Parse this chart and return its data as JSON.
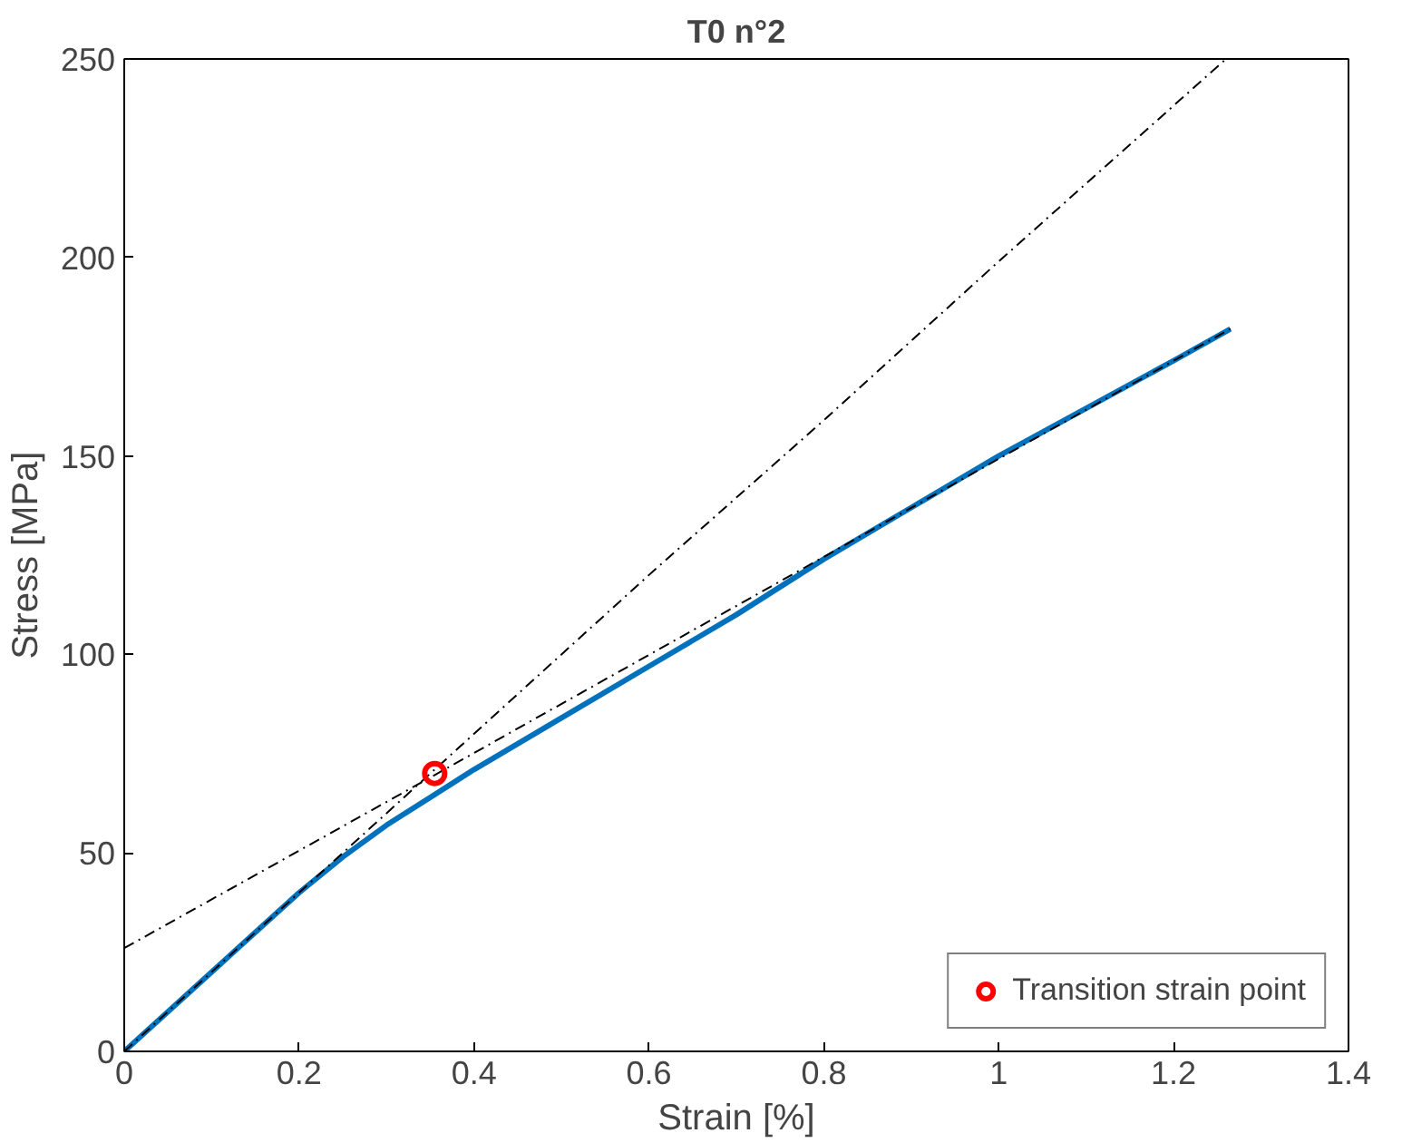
{
  "chart_data": {
    "type": "line",
    "title": "T0 n°2",
    "xlabel": "Strain [%]",
    "ylabel": "Stress [MPa]",
    "xlim": [
      0,
      1.4
    ],
    "ylim": [
      0,
      250
    ],
    "xticks": [
      0,
      0.2,
      0.4,
      0.6,
      0.8,
      1,
      1.2,
      1.4
    ],
    "yticks": [
      0,
      50,
      100,
      150,
      200,
      250
    ],
    "grid": false,
    "legend": "bottom right",
    "series": [
      {
        "color": "#0072bd",
        "x": [
          0,
          0.1,
          0.2,
          0.25,
          0.3,
          0.35,
          0.4,
          0.5,
          0.6,
          0.7,
          0.8,
          0.9,
          1.0,
          1.1,
          1.2,
          1.265
        ],
        "values": [
          0,
          20,
          40,
          49,
          57,
          64,
          71,
          84,
          97,
          110,
          124,
          137,
          150,
          162,
          174,
          182
        ]
      },
      {
        "type": "line",
        "color": "#000000",
        "line_style": "dashed",
        "x": [
          0,
          0.2,
          0.35,
          0.6,
          0.8,
          1.0,
          1.26
        ],
        "values": [
          0,
          40,
          70,
          120,
          159,
          199,
          250
        ]
      },
      {
        "type": "line",
        "color": "#000000",
        "line_style": "dashed",
        "x": [
          0,
          0.35,
          1.265
        ],
        "values": [
          26,
          69,
          182
        ]
      },
      {
        "type": "scatter",
        "name": "Transition strain point",
        "color": "#ff0000",
        "marker": "circle",
        "x": [
          0.355
        ],
        "values": [
          70
        ]
      }
    ]
  }
}
